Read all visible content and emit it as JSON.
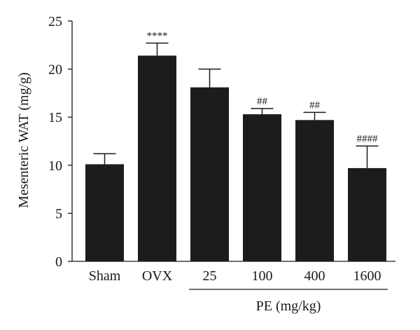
{
  "chart_data": {
    "type": "bar",
    "categories": [
      "Sham",
      "OVX",
      "25",
      "100",
      "400",
      "1600"
    ],
    "values": [
      10.1,
      21.4,
      18.1,
      15.3,
      14.7,
      9.7
    ],
    "errors": [
      1.1,
      1.3,
      1.9,
      0.6,
      0.8,
      2.3
    ],
    "annotations": [
      "",
      "****",
      "",
      "##",
      "##",
      "####"
    ],
    "ylabel": "Mesenteric WAT (mg/g)",
    "xlabel": "",
    "ylim": [
      0,
      25
    ],
    "yticks": [
      0,
      5,
      10,
      15,
      20,
      25
    ],
    "group_label": "PE (mg/kg)",
    "group_categories": [
      "25",
      "100",
      "400",
      "1600"
    ],
    "bar_color": "#1c1c1c",
    "grid": false,
    "legend": "none"
  }
}
